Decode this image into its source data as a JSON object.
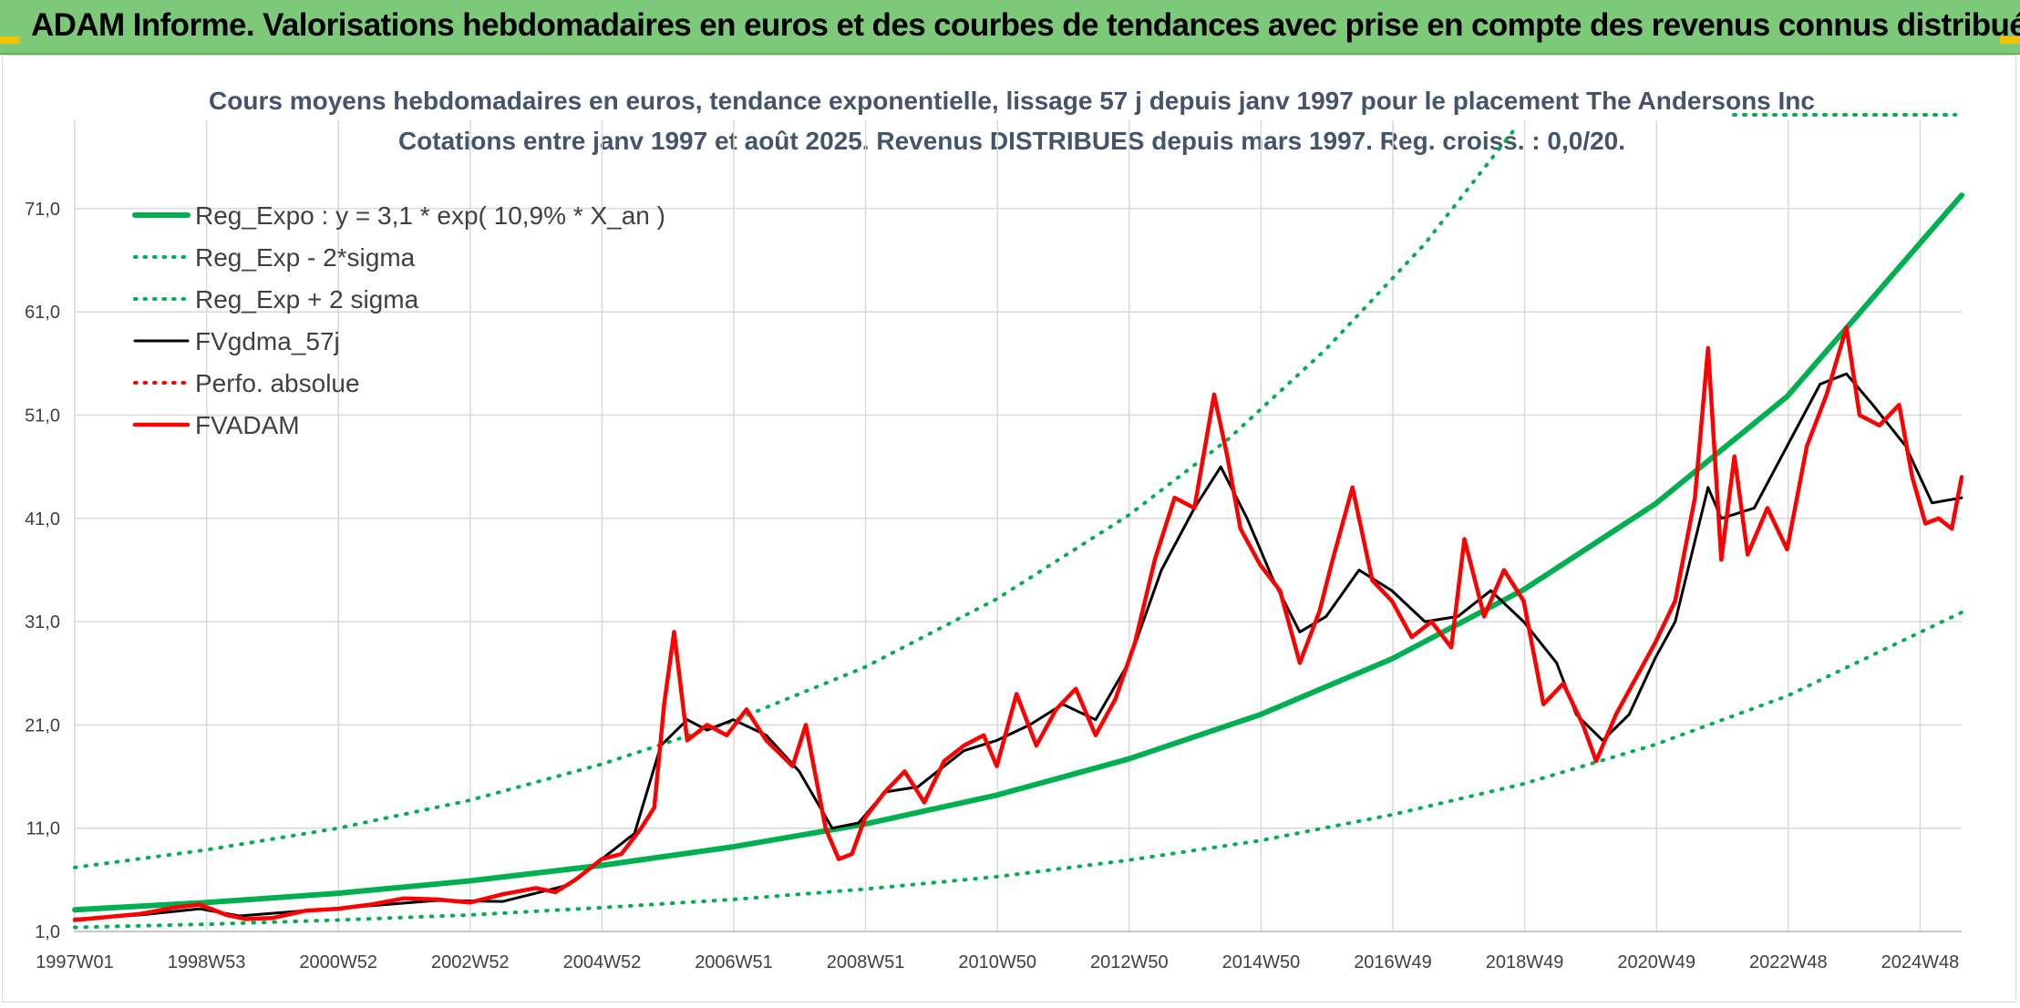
{
  "header": {
    "title": "ADAM Informe. Valorisations hebdomadaires en euros et des courbes de tendances avec prise en compte des revenus connus distribués"
  },
  "colors": {
    "header_bg": "#7dc97a",
    "regression": "#00b050",
    "smoothed": "#000000",
    "price": "#ff0000",
    "corner_accent": "#f2c200"
  },
  "chart_data": {
    "type": "line",
    "title": "Cours moyens hebdomadaires en euros, tendance exponentielle, lissage 57 j depuis janv 1997 pour le placement The Andersons Inc",
    "subtitle": "Cotations entre janv 1997 et août 2025. Revenus DISTRIBUES depuis mars 1997. Reg. croiss. : 0,0/20.",
    "xlabel": "",
    "ylabel": "",
    "ylim": [
      1,
      76
    ],
    "xlim": [
      1997.0,
      2025.65
    ],
    "grid": true,
    "legend_position": "top-left",
    "y_ticks": [
      "1,0",
      "11,0",
      "21,0",
      "31,0",
      "41,0",
      "51,0",
      "61,0",
      "71,0"
    ],
    "x_ticks": [
      "1997W01",
      "1998W53",
      "2000W52",
      "2002W52",
      "2004W52",
      "2006W51",
      "2008W51",
      "2010W50",
      "2012W50",
      "2014W50",
      "2016W49",
      "2018W49",
      "2020W49",
      "2022W48",
      "2024W48"
    ],
    "series": [
      {
        "name": "Reg_Expo : y = 3,1 * exp( 10,9% *  X_an )",
        "style": "solid-thick",
        "color": "#00b050",
        "x": [
          1997.0,
          1999.0,
          2001.0,
          2003.0,
          2005.0,
          2007.0,
          2009.0,
          2011.0,
          2013.0,
          2015.0,
          2017.0,
          2019.0,
          2021.0,
          2023.0,
          2025.65
        ],
        "y": [
          3.1,
          3.8,
          4.7,
          5.9,
          7.4,
          9.2,
          11.4,
          14.2,
          17.7,
          22.0,
          27.4,
          34.1,
          42.4,
          52.8,
          72.3
        ]
      },
      {
        "name": "Reg_Exp - 2*sigma",
        "style": "dotted",
        "color": "#00b050",
        "x": [
          1997.0,
          1999.0,
          2001.0,
          2003.0,
          2005.0,
          2007.0,
          2009.0,
          2011.0,
          2013.0,
          2015.0,
          2017.0,
          2019.0,
          2021.0,
          2023.0,
          2025.65
        ],
        "y": [
          1.4,
          1.7,
          2.1,
          2.6,
          3.3,
          4.1,
          5.1,
          6.3,
          7.9,
          9.8,
          12.3,
          15.3,
          19.1,
          23.8,
          31.9
        ]
      },
      {
        "name": "Reg_Exp + 2 sigma",
        "style": "dotted",
        "color": "#00b050",
        "x": [
          1997.0,
          1999.0,
          2001.0,
          2003.0,
          2005.0,
          2007.0,
          2009.0,
          2011.0,
          2013.0,
          2014.5,
          2016.0,
          2017.5,
          2018.9
        ],
        "y": [
          7.2,
          8.9,
          11.0,
          13.7,
          17.2,
          21.4,
          26.6,
          33.2,
          41.3,
          48.6,
          57.4,
          67.6,
          79.0
        ]
      },
      {
        "name": "FVgdma_57j",
        "style": "solid",
        "color": "#000000",
        "x": [
          1997.0,
          1998.0,
          1998.9,
          1999.5,
          2000.5,
          2001.5,
          2002.5,
          2003.5,
          2004.0,
          2004.5,
          2005.0,
          2005.5,
          2005.9,
          2006.3,
          2006.6,
          2007.0,
          2007.5,
          2008.0,
          2008.5,
          2008.9,
          2009.3,
          2009.8,
          2010.5,
          2011.0,
          2011.5,
          2012.0,
          2012.5,
          2013.0,
          2013.5,
          2014.0,
          2014.4,
          2014.8,
          2015.2,
          2015.6,
          2016.0,
          2016.5,
          2017.0,
          2017.5,
          2018.0,
          2018.5,
          2019.0,
          2019.5,
          2019.8,
          2020.2,
          2020.6,
          2021.0,
          2021.3,
          2021.8,
          2022.0,
          2022.5,
          2023.0,
          2023.5,
          2023.9,
          2024.3,
          2024.8,
          2025.2,
          2025.65
        ],
        "y": [
          2.2,
          2.6,
          3.2,
          2.5,
          3.0,
          3.5,
          4.0,
          3.9,
          4.7,
          5.5,
          8.0,
          10.5,
          19.0,
          21.5,
          20.5,
          21.5,
          20.0,
          16.5,
          11.0,
          11.5,
          14.5,
          15.0,
          18.5,
          19.5,
          21.0,
          23.0,
          21.5,
          27.0,
          36.0,
          42.0,
          46.0,
          41.0,
          35.0,
          30.0,
          31.5,
          36.0,
          34.0,
          31.0,
          31.5,
          34.0,
          31.0,
          27.0,
          22.0,
          19.5,
          22.0,
          27.5,
          31.0,
          44.0,
          41.0,
          42.0,
          48.0,
          54.0,
          55.0,
          52.0,
          48.0,
          42.5,
          43.0
        ]
      },
      {
        "name": "Perfo. absolue",
        "style": "dotted",
        "color": "#ff0000",
        "x": [],
        "y": []
      },
      {
        "name": "FVADAM",
        "style": "solid-thick",
        "color": "#ff0000",
        "x": [
          1997.0,
          1997.5,
          1998.0,
          1998.5,
          1998.9,
          1999.3,
          1999.6,
          2000.0,
          2000.5,
          2001.0,
          2001.5,
          2002.0,
          2002.5,
          2003.0,
          2003.5,
          2004.0,
          2004.3,
          2004.6,
          2005.0,
          2005.3,
          2005.6,
          2005.8,
          2005.95,
          2006.1,
          2006.3,
          2006.6,
          2006.9,
          2007.2,
          2007.5,
          2007.9,
          2008.1,
          2008.4,
          2008.6,
          2008.8,
          2009.0,
          2009.3,
          2009.6,
          2009.9,
          2010.2,
          2010.5,
          2010.8,
          2011.0,
          2011.3,
          2011.6,
          2011.9,
          2012.2,
          2012.5,
          2012.8,
          2013.1,
          2013.4,
          2013.7,
          2014.0,
          2014.3,
          2014.5,
          2014.7,
          2015.0,
          2015.3,
          2015.6,
          2015.9,
          2016.1,
          2016.4,
          2016.7,
          2017.0,
          2017.3,
          2017.6,
          2017.9,
          2018.1,
          2018.4,
          2018.7,
          2019.0,
          2019.3,
          2019.6,
          2019.9,
          2020.1,
          2020.4,
          2020.7,
          2021.0,
          2021.3,
          2021.6,
          2021.8,
          2022.0,
          2022.2,
          2022.4,
          2022.7,
          2023.0,
          2023.3,
          2023.6,
          2023.9,
          2024.1,
          2024.4,
          2024.7,
          2024.9,
          2025.1,
          2025.3,
          2025.5,
          2025.65
        ],
        "y": [
          2.1,
          2.4,
          2.7,
          3.3,
          3.6,
          2.6,
          2.2,
          2.3,
          3.0,
          3.2,
          3.6,
          4.2,
          4.1,
          3.8,
          4.6,
          5.2,
          4.8,
          6.0,
          8.0,
          8.5,
          11.0,
          13.0,
          23.0,
          30.0,
          19.5,
          21.0,
          20.0,
          22.5,
          19.5,
          17.0,
          21.0,
          11.0,
          8.0,
          8.5,
          12.0,
          14.5,
          16.5,
          13.5,
          17.5,
          19.0,
          20.0,
          17.0,
          24.0,
          19.0,
          22.5,
          24.5,
          20.0,
          23.5,
          29.0,
          37.0,
          43.0,
          42.0,
          53.0,
          47.0,
          40.0,
          36.5,
          34.0,
          27.0,
          32.0,
          37.0,
          44.0,
          35.0,
          33.0,
          29.5,
          31.0,
          28.5,
          39.0,
          31.5,
          36.0,
          33.0,
          23.0,
          25.0,
          21.0,
          17.5,
          22.0,
          25.5,
          29.0,
          33.0,
          43.0,
          57.5,
          37.0,
          47.0,
          37.5,
          42.0,
          38.0,
          48.0,
          53.0,
          59.5,
          51.0,
          50.0,
          52.0,
          45.0,
          40.5,
          41.0,
          40.0,
          45.0
        ]
      }
    ]
  }
}
